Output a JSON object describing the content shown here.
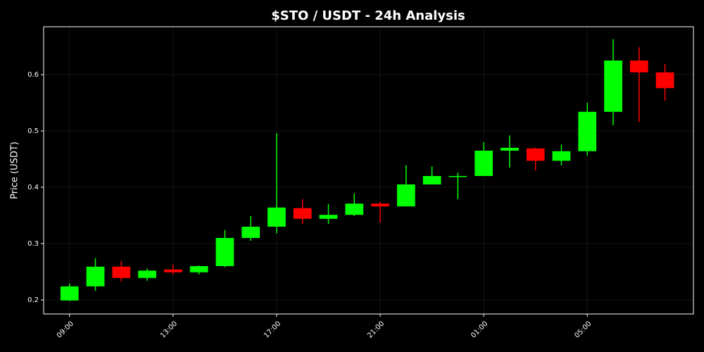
{
  "chart_data": {
    "type": "candlestick",
    "title": "$STO / USDT - 24h Analysis",
    "y_label": "Price (USDT)",
    "categories": [
      "09:00",
      null,
      null,
      null,
      "13:00",
      null,
      null,
      null,
      "17:00",
      null,
      null,
      null,
      "21:00",
      null,
      null,
      null,
      "01:00",
      null,
      null,
      null,
      "05:00",
      null,
      null,
      null
    ],
    "open": [
      0.199,
      0.224,
      0.259,
      0.239,
      0.254,
      0.249,
      0.26,
      0.31,
      0.33,
      0.363,
      0.344,
      0.351,
      0.371,
      0.366,
      0.405,
      0.419,
      0.42,
      0.465,
      0.469,
      0.447,
      0.464,
      0.534,
      0.625,
      0.604
    ],
    "high": [
      0.229,
      0.274,
      0.269,
      0.256,
      0.263,
      0.261,
      0.324,
      0.349,
      0.496,
      0.379,
      0.37,
      0.389,
      0.374,
      0.439,
      0.437,
      0.426,
      0.48,
      0.492,
      0.47,
      0.476,
      0.55,
      0.663,
      0.649,
      0.619
    ],
    "low": [
      0.198,
      0.216,
      0.233,
      0.234,
      0.245,
      0.245,
      0.258,
      0.305,
      0.318,
      0.335,
      0.335,
      0.349,
      0.337,
      0.366,
      0.405,
      0.379,
      0.42,
      0.435,
      0.43,
      0.439,
      0.456,
      0.51,
      0.516,
      0.554
    ],
    "close": [
      0.224,
      0.259,
      0.239,
      0.252,
      0.249,
      0.26,
      0.31,
      0.33,
      0.364,
      0.344,
      0.351,
      0.371,
      0.366,
      0.405,
      0.42,
      0.42,
      0.465,
      0.47,
      0.447,
      0.464,
      0.534,
      0.625,
      0.604,
      0.576
    ],
    "up_color": "#00ff00",
    "down_color": "#ff0000",
    "ylim": [
      0.175,
      0.685
    ],
    "yticks": [
      0.2,
      0.3,
      0.4,
      0.5,
      0.6
    ],
    "grid": true
  }
}
